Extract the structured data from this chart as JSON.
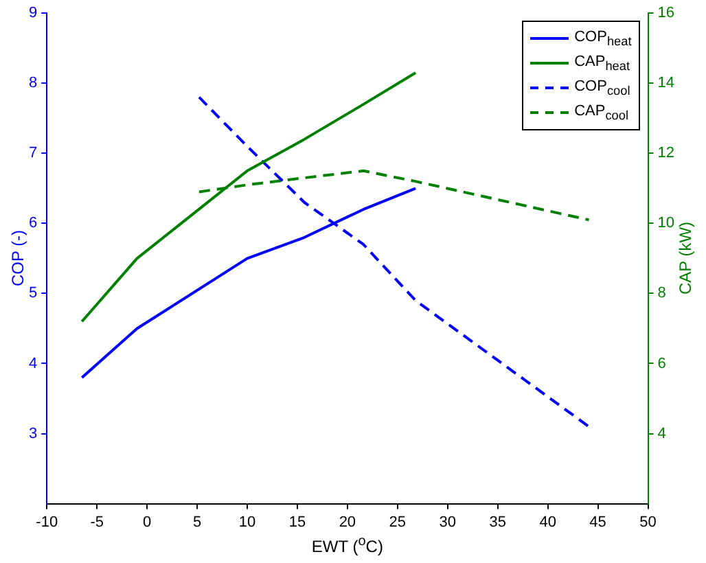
{
  "chart_data": {
    "type": "line",
    "xlabel": "EWT ($^{o}$C)",
    "ylabel": "COP (-)",
    "y2label": "CAP (kW)",
    "xlim": [
      -10,
      50
    ],
    "xticks": [
      -10,
      -5,
      0,
      5,
      10,
      15,
      20,
      25,
      30,
      35,
      40,
      45,
      50
    ],
    "ylim": [
      2,
      9
    ],
    "yticks": [
      3,
      4,
      5,
      6,
      7,
      8,
      9
    ],
    "y2lim": [
      2,
      16
    ],
    "y2ticks": [
      4,
      6,
      8,
      10,
      12,
      14,
      16
    ],
    "grid": false,
    "legend": "top right",
    "marker": "none",
    "series": [
      {
        "name": "COP$_{heat}$",
        "color": "#0000ff",
        "line_style": "solid",
        "x": [
          -6.5,
          -1,
          10,
          15.7,
          21.6,
          26.8
        ],
        "values": [
          3.8,
          4.5,
          5.5,
          5.8,
          6.2,
          6.5
        ]
      },
      {
        "name": "CAP$_{heat}$",
        "color": "#008000",
        "line_style": "solid",
        "axis": "y2",
        "x": [
          -6.5,
          -1,
          10,
          15.7,
          21.6,
          26.8
        ],
        "values": [
          7.2,
          9.0,
          11.5,
          12.4,
          13.4,
          14.3
        ]
      },
      {
        "name": "COP$_{cool}$",
        "color": "#0000ff",
        "line_style": "dashed",
        "x": [
          5.2,
          10,
          15.7,
          21.6,
          26.8,
          44.1
        ],
        "values": [
          7.8,
          7.1,
          6.3,
          5.7,
          4.9,
          3.1
        ]
      },
      {
        "name": "CAP$_{cool}$",
        "color": "#008000",
        "line_style": "dashed",
        "axis": "y2",
        "x": [
          5.2,
          10,
          15.7,
          21.6,
          26.8,
          44.1
        ],
        "values": [
          10.9,
          11.1,
          11.3,
          11.5,
          11.2,
          10.1
        ]
      }
    ]
  }
}
